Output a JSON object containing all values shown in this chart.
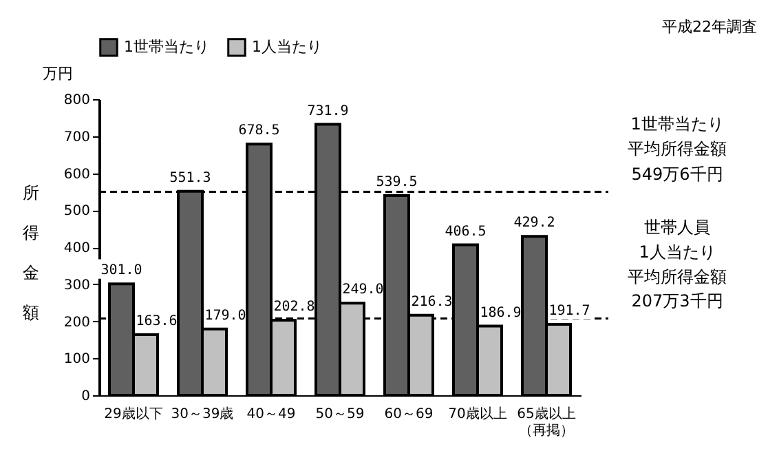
{
  "chart_data": {
    "type": "bar",
    "ylabel": "所得金額",
    "categories": [
      "29歳以下",
      "30～39歳",
      "40～49",
      "50～59",
      "60～69",
      "70歳以上",
      "65歳以上（再掲）"
    ],
    "series": [
      {
        "name": "1世帯当たり",
        "color": "#606060",
        "values": [
          301.0,
          551.3,
          678.5,
          731.9,
          539.5,
          406.5,
          429.2
        ],
        "value_labels": [
          "301.0",
          "551.3",
          "678.5",
          "731.9",
          "539.5",
          "406.5",
          "429.2"
        ]
      },
      {
        "name": "1人当たり",
        "color": "#c0c0c0",
        "values": [
          163.6,
          179.0,
          202.8,
          249.0,
          216.3,
          186.9,
          191.7
        ],
        "value_labels": [
          "163.6",
          "179.0",
          "202.8",
          "249.0",
          "216.3",
          "186.9",
          "191.7"
        ]
      }
    ],
    "ylim": [
      0,
      800
    ],
    "yticks": [
      0,
      100,
      200,
      300,
      400,
      500,
      600,
      700,
      800
    ],
    "ref_lines": [
      {
        "axis": "y",
        "value": 549.6,
        "label": "549万6千円",
        "line_style": "dashed"
      },
      {
        "axis": "y",
        "value": 207.3,
        "label": "207万3千円",
        "line_style": "dashed"
      }
    ],
    "annotations": [
      "万円",
      "平成22年調査",
      "1世帯当たり",
      "平均所得金額",
      "世帯人員",
      "1人当たり",
      "平均所得金額"
    ],
    "grid": false,
    "legend": "top"
  }
}
